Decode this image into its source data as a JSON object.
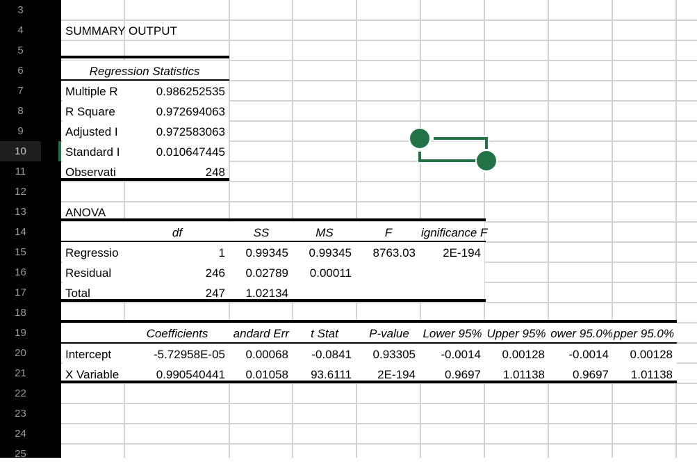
{
  "rows": [
    "3",
    "4",
    "5",
    "6",
    "7",
    "8",
    "9",
    "10",
    "11",
    "12",
    "13",
    "14",
    "15",
    "16",
    "17",
    "18",
    "19",
    "20",
    "21",
    "22",
    "23",
    "24",
    "25"
  ],
  "selected_row": "10",
  "summary_title": "SUMMARY OUTPUT",
  "regstats": {
    "header": "Regression Statistics",
    "labels": [
      "Multiple R",
      "R Square",
      "Adjusted R",
      "Standard E",
      "Observations"
    ],
    "labels_display": [
      "Multiple R",
      "R Square",
      "Adjusted I",
      "Standard I",
      "Observati"
    ],
    "values": [
      "0.986252535",
      "0.972694063",
      "0.972583063",
      "0.010647445",
      "248"
    ]
  },
  "anova": {
    "title": "ANOVA",
    "headers": [
      "df",
      "SS",
      "MS",
      "F",
      "ignificance F"
    ],
    "rows": [
      {
        "label": "Regressio",
        "df": "1",
        "ss": "0.99345",
        "ms": "0.99345",
        "f": "8763.03",
        "sig": "2E-194"
      },
      {
        "label": "Residual",
        "df": "246",
        "ss": "0.02789",
        "ms": "0.00011",
        "f": "",
        "sig": ""
      },
      {
        "label": "Total",
        "df": "247",
        "ss": "1.02134",
        "ms": "",
        "f": "",
        "sig": ""
      }
    ]
  },
  "coef": {
    "headers": [
      "Coefficients",
      "andard Err",
      "t Stat",
      "P-value",
      "Lower 95%",
      "Upper 95%",
      "ower 95.0%",
      "pper 95.0%"
    ],
    "rows": [
      {
        "label": "Intercept",
        "vals": [
          "-5.72958E-05",
          "0.00068",
          "-0.0841",
          "0.93305",
          "-0.0014",
          "0.00128",
          "-0.0014",
          "0.00128"
        ]
      },
      {
        "label": "X Variable",
        "vals": [
          "0.990540441",
          "0.01058",
          "93.6111",
          "2E-194",
          "0.9697",
          "1.01138",
          "0.9697",
          "1.01138"
        ]
      }
    ]
  },
  "accent_color": "#217346"
}
